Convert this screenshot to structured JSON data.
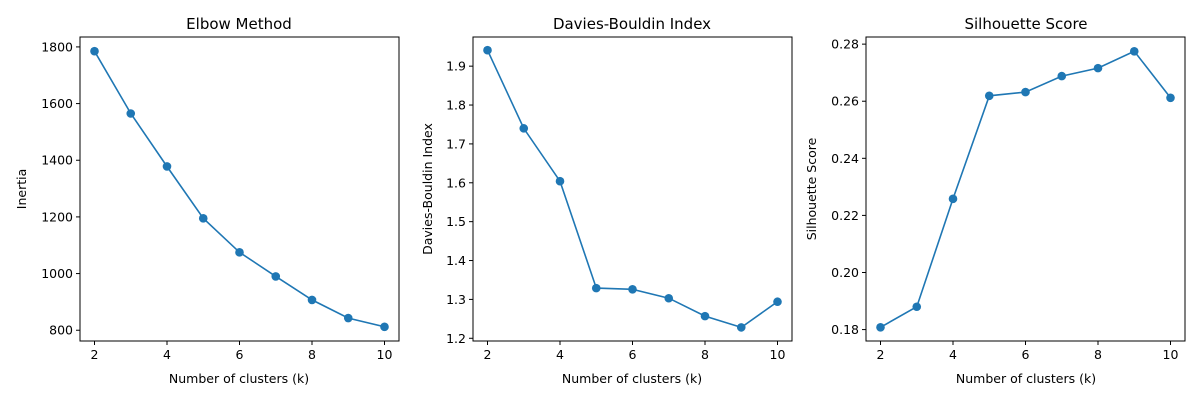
{
  "chart_data": [
    {
      "type": "line",
      "title": "Elbow Method",
      "xlabel": "Number of clusters (k)",
      "ylabel": "Inertia",
      "x": [
        2,
        3,
        4,
        5,
        6,
        7,
        8,
        9,
        10
      ],
      "series": [
        {
          "values": [
            1785,
            1565,
            1378,
            1195,
            1075,
            990,
            907,
            843,
            812
          ]
        }
      ],
      "xlim": [
        1.6,
        10.4
      ],
      "ylim": [
        762,
        1835
      ],
      "xticks": [
        2,
        4,
        6,
        8,
        10
      ],
      "yticks": [
        800,
        1000,
        1200,
        1400,
        1600,
        1800
      ],
      "ytick_labels": [
        "800",
        "1000",
        "1200",
        "1400",
        "1600",
        "1800"
      ],
      "grid": false,
      "color": "#1f77b4"
    },
    {
      "type": "line",
      "title": "Davies-Bouldin Index",
      "xlabel": "Number of clusters (k)",
      "ylabel": "Davies-Bouldin Index",
      "x": [
        2,
        3,
        4,
        5,
        6,
        7,
        8,
        9,
        10
      ],
      "series": [
        {
          "values": [
            1.941,
            1.74,
            1.604,
            1.329,
            1.326,
            1.303,
            1.257,
            1.228,
            1.294
          ]
        }
      ],
      "xlim": [
        1.6,
        10.4
      ],
      "ylim": [
        1.193,
        1.975
      ],
      "xticks": [
        2,
        4,
        6,
        8,
        10
      ],
      "yticks": [
        1.2,
        1.3,
        1.4,
        1.5,
        1.6,
        1.7,
        1.8,
        1.9
      ],
      "ytick_labels": [
        "1.2",
        "1.3",
        "1.4",
        "1.5",
        "1.6",
        "1.7",
        "1.8",
        "1.9"
      ],
      "grid": false,
      "color": "#1f77b4"
    },
    {
      "type": "line",
      "title": "Silhouette Score",
      "xlabel": "Number of clusters (k)",
      "ylabel": "Silhouette Score",
      "x": [
        2,
        3,
        4,
        5,
        6,
        7,
        8,
        9,
        10
      ],
      "series": [
        {
          "values": [
            0.1808,
            0.188,
            0.2258,
            0.2619,
            0.2632,
            0.2688,
            0.2716,
            0.2775,
            0.2612
          ]
        }
      ],
      "xlim": [
        1.6,
        10.4
      ],
      "ylim": [
        0.176,
        0.2825
      ],
      "xticks": [
        2,
        4,
        6,
        8,
        10
      ],
      "yticks": [
        0.18,
        0.2,
        0.22,
        0.24,
        0.26,
        0.28
      ],
      "ytick_labels": [
        "0.18",
        "0.20",
        "0.22",
        "0.24",
        "0.26",
        "0.28"
      ],
      "grid": false,
      "color": "#1f77b4"
    }
  ]
}
